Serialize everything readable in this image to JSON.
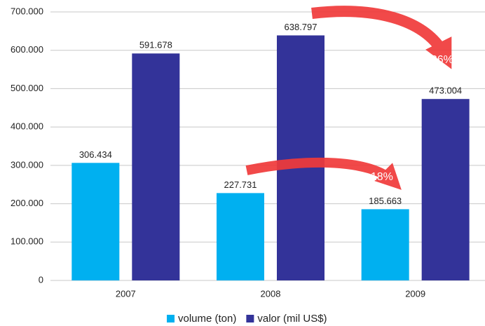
{
  "chart_data": {
    "type": "bar",
    "categories": [
      "2007",
      "2008",
      "2009"
    ],
    "series": [
      {
        "name": "volume (ton)",
        "color": "#00b0f0",
        "values": [
          306434,
          227731,
          185663
        ],
        "value_labels": [
          "306.434",
          "227.731",
          "185.663"
        ]
      },
      {
        "name": "valor (mil US$)",
        "color": "#333399",
        "values": [
          591678,
          638797,
          473004
        ],
        "value_labels": [
          "591.678",
          "638.797",
          "473.004"
        ]
      }
    ],
    "ylim": [
      0,
      700000
    ],
    "yticks": [
      0,
      {
        "value": 100000,
        "label": "100.000"
      },
      {
        "value": 200000,
        "label": "200.000"
      },
      {
        "value": 300000,
        "label": "300.000"
      },
      {
        "value": 400000,
        "label": "400.000"
      },
      {
        "value": 500000,
        "label": "500.000"
      },
      {
        "value": 600000,
        "label": "600.000"
      },
      {
        "value": 700000,
        "label": "700.000"
      }
    ],
    "grid": true,
    "annotations": [
      "- 26%",
      "- 18%"
    ]
  }
}
